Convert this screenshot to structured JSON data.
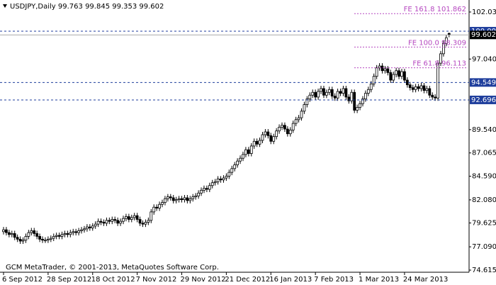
{
  "chart_data": {
    "type": "candlestick",
    "title": "USDJPY,Daily  99.763 99.845 99.353 99.602",
    "footer": "GCM MetaTrader, © 2001-2013, MetaQuotes Software Corp.",
    "categories": [
      "6 Sep 2012",
      null,
      null,
      null,
      null,
      null,
      null,
      null,
      null,
      null,
      null,
      null,
      null,
      null,
      null,
      null,
      "28 Sep 2012",
      null,
      null,
      null,
      null,
      null,
      null,
      null,
      null,
      null,
      null,
      null,
      null,
      null,
      null,
      null,
      "18 Oct 2012",
      null,
      null,
      null,
      null,
      null,
      null,
      null,
      null,
      null,
      null,
      null,
      null,
      null,
      null,
      null,
      "7 Nov 2012",
      null,
      null,
      null,
      null,
      null,
      null,
      null,
      null,
      null,
      null,
      null,
      null,
      null,
      null,
      null,
      "29 Nov 2012",
      null,
      null,
      null,
      null,
      null,
      null,
      null,
      null,
      null,
      null,
      null,
      null,
      null,
      null,
      null,
      "21 Dec 2012",
      null,
      null,
      null,
      null,
      null,
      null,
      null,
      null,
      null,
      null,
      null,
      null,
      null,
      null,
      null,
      "16 Jan 2013",
      null,
      null,
      null,
      null,
      null,
      null,
      null,
      null,
      null,
      null,
      null,
      null,
      null,
      null,
      null,
      "7 Feb 2013",
      null,
      null,
      null,
      null,
      null,
      null,
      null,
      null,
      null,
      null,
      null,
      null,
      null,
      null,
      null,
      "1 Mar 2013",
      null,
      null,
      null,
      null,
      null,
      null,
      null,
      null,
      null,
      null,
      null,
      null,
      null,
      null,
      null,
      "24 Mar 2013",
      null,
      null,
      null,
      null,
      null,
      null,
      null,
      null,
      null,
      null,
      null,
      null,
      null,
      null,
      null,
      null
    ],
    "open": [
      78.7,
      78.9,
      78.6,
      78.4,
      78.5,
      78.1,
      77.9,
      77.7,
      77.8,
      78.2,
      78.6,
      78.8,
      78.5,
      78.2,
      77.9,
      77.8,
      77.8,
      77.9,
      78.0,
      78.2,
      78.3,
      78.2,
      78.4,
      78.5,
      78.4,
      78.6,
      78.7,
      78.6,
      78.8,
      78.9,
      79.0,
      79.2,
      79.1,
      79.3,
      79.5,
      79.8,
      79.7,
      79.6,
      79.9,
      79.8,
      80.0,
      79.9,
      79.6,
      79.8,
      80.1,
      80.3,
      80.0,
      80.2,
      80.4,
      80.0,
      79.6,
      79.5,
      79.7,
      79.9,
      80.8,
      81.3,
      81.2,
      81.6,
      81.8,
      82.2,
      82.4,
      82.3,
      82.0,
      82.1,
      82.2,
      82.1,
      82.3,
      82.0,
      82.2,
      82.4,
      82.5,
      82.8,
      83.1,
      83.3,
      83.2,
      83.6,
      83.9,
      84.0,
      84.3,
      84.2,
      84.4,
      84.6,
      85.0,
      85.4,
      85.8,
      86.2,
      86.5,
      86.9,
      87.4,
      87.0,
      87.8,
      88.3,
      88.0,
      88.4,
      89.0,
      89.3,
      88.9,
      88.3,
      88.8,
      89.4,
      89.8,
      90.0,
      89.6,
      89.1,
      89.5,
      90.2,
      90.6,
      90.8,
      91.5,
      92.2,
      92.8,
      93.2,
      93.5,
      93.0,
      93.6,
      93.9,
      93.2,
      93.5,
      93.8,
      93.1,
      92.9,
      93.6,
      93.4,
      93.9,
      93.0,
      92.6,
      93.5,
      91.6,
      91.9,
      92.3,
      92.8,
      93.4,
      93.8,
      94.4,
      95.2,
      96.1,
      96.3,
      95.8,
      96.0,
      95.6,
      94.8,
      95.4,
      95.8,
      95.2,
      95.7,
      94.8,
      94.3,
      94.0,
      93.8,
      94.1,
      93.9,
      94.2,
      93.7,
      93.9,
      93.2,
      93.0,
      92.9,
      96.6,
      97.6,
      98.7,
      99.763
    ],
    "high": [
      79.2,
      79.2,
      78.9,
      78.8,
      78.8,
      78.4,
      78.2,
      78.1,
      78.5,
      78.9,
      79.1,
      79.1,
      78.8,
      78.5,
      78.2,
      78.1,
      78.2,
      78.3,
      78.5,
      78.6,
      78.6,
      78.7,
      78.8,
      78.8,
      78.9,
      79.0,
      79.0,
      79.1,
      79.2,
      79.3,
      79.5,
      79.5,
      79.6,
      79.8,
      80.1,
      80.1,
      80.0,
      80.2,
      80.2,
      80.3,
      80.3,
      80.2,
      80.1,
      80.4,
      80.6,
      80.6,
      80.5,
      80.7,
      80.7,
      80.3,
      79.9,
      80.0,
      80.2,
      81.1,
      81.6,
      81.6,
      81.9,
      82.1,
      82.5,
      82.7,
      82.7,
      82.6,
      82.4,
      82.5,
      82.5,
      82.6,
      82.6,
      82.5,
      82.7,
      82.8,
      83.1,
      83.4,
      83.6,
      83.6,
      83.9,
      84.2,
      84.3,
      84.6,
      84.6,
      84.7,
      84.9,
      85.3,
      85.7,
      86.1,
      86.5,
      86.8,
      87.2,
      87.7,
      87.7,
      88.1,
      88.6,
      88.6,
      88.7,
      89.3,
      89.6,
      89.6,
      89.2,
      89.1,
      89.7,
      90.1,
      90.3,
      90.3,
      89.9,
      89.8,
      90.5,
      90.9,
      91.1,
      91.8,
      92.5,
      93.1,
      93.5,
      93.8,
      93.8,
      93.9,
      94.2,
      94.2,
      93.8,
      94.1,
      94.1,
      93.4,
      93.9,
      93.9,
      94.2,
      94.2,
      93.3,
      93.8,
      93.8,
      92.2,
      92.6,
      93.1,
      93.7,
      94.1,
      94.7,
      95.5,
      96.4,
      96.6,
      96.6,
      96.3,
      96.3,
      95.9,
      95.7,
      96.1,
      96.1,
      96.0,
      96.0,
      95.1,
      94.6,
      94.3,
      94.4,
      94.4,
      94.5,
      94.5,
      94.2,
      94.2,
      93.5,
      93.3,
      96.9,
      97.9,
      99.0,
      99.6,
      99.845
    ],
    "low": [
      78.4,
      78.3,
      78.1,
      78.1,
      77.8,
      77.6,
      77.4,
      77.4,
      77.5,
      77.9,
      78.3,
      78.2,
      77.9,
      77.6,
      77.5,
      77.5,
      77.5,
      77.6,
      77.7,
      77.9,
      77.9,
      77.9,
      78.1,
      78.1,
      78.1,
      78.3,
      78.3,
      78.3,
      78.5,
      78.6,
      78.7,
      78.8,
      78.8,
      79.0,
      79.2,
      79.4,
      79.3,
      79.3,
      79.5,
      79.5,
      79.6,
      79.3,
      79.3,
      79.5,
      79.8,
      79.7,
      79.7,
      79.9,
      79.7,
      79.3,
      79.2,
      79.2,
      79.4,
      79.6,
      80.5,
      80.9,
      80.9,
      81.3,
      81.5,
      81.9,
      82.0,
      81.7,
      81.7,
      81.8,
      81.8,
      81.8,
      81.7,
      81.7,
      81.9,
      82.1,
      82.2,
      82.5,
      82.8,
      82.9,
      82.9,
      83.3,
      83.6,
      83.7,
      83.9,
      83.9,
      84.1,
      84.3,
      84.7,
      85.1,
      85.5,
      85.9,
      86.2,
      86.6,
      86.7,
      86.7,
      87.5,
      87.7,
      87.7,
      88.1,
      88.7,
      88.6,
      88.0,
      88.0,
      88.5,
      89.1,
      89.5,
      89.3,
      88.8,
      88.8,
      89.2,
      89.9,
      90.3,
      90.5,
      91.2,
      91.9,
      92.5,
      92.9,
      92.7,
      92.7,
      93.3,
      92.9,
      92.9,
      93.2,
      92.8,
      92.6,
      92.6,
      93.1,
      93.1,
      92.7,
      92.3,
      92.3,
      91.3,
      91.3,
      91.6,
      92.0,
      92.5,
      93.1,
      93.5,
      94.1,
      94.9,
      95.8,
      95.5,
      95.5,
      95.3,
      94.5,
      94.5,
      95.1,
      94.9,
      94.9,
      94.5,
      94.0,
      93.7,
      93.5,
      93.5,
      93.6,
      93.6,
      93.4,
      93.4,
      92.9,
      92.7,
      92.6,
      92.6,
      96.3,
      97.3,
      98.4,
      99.353
    ],
    "close": [
      78.9,
      78.6,
      78.4,
      78.5,
      78.1,
      77.9,
      77.7,
      77.8,
      78.2,
      78.6,
      78.8,
      78.5,
      78.2,
      77.9,
      77.8,
      77.8,
      77.9,
      78.0,
      78.2,
      78.3,
      78.2,
      78.4,
      78.5,
      78.4,
      78.6,
      78.7,
      78.6,
      78.8,
      78.9,
      79.0,
      79.2,
      79.1,
      79.3,
      79.5,
      79.8,
      79.7,
      79.6,
      79.9,
      79.8,
      80.0,
      79.9,
      79.6,
      79.8,
      80.1,
      80.3,
      80.0,
      80.2,
      80.4,
      80.0,
      79.6,
      79.5,
      79.7,
      79.9,
      80.8,
      81.3,
      81.2,
      81.6,
      81.8,
      82.2,
      82.4,
      82.3,
      82.0,
      82.1,
      82.2,
      82.1,
      82.3,
      82.0,
      82.2,
      82.4,
      82.5,
      82.8,
      83.1,
      83.3,
      83.2,
      83.6,
      83.9,
      84.0,
      84.3,
      84.2,
      84.4,
      84.6,
      85.0,
      85.4,
      85.8,
      86.2,
      86.5,
      86.9,
      87.4,
      87.0,
      87.8,
      88.3,
      88.0,
      88.4,
      89.0,
      89.3,
      88.9,
      88.3,
      88.8,
      89.4,
      89.8,
      90.0,
      89.6,
      89.1,
      89.5,
      90.2,
      90.6,
      90.8,
      91.5,
      92.2,
      92.8,
      93.2,
      93.5,
      93.0,
      93.6,
      93.9,
      93.2,
      93.5,
      93.8,
      93.1,
      92.9,
      93.6,
      93.4,
      93.9,
      93.0,
      92.6,
      93.5,
      91.6,
      91.9,
      92.3,
      92.8,
      93.4,
      93.8,
      94.4,
      95.2,
      96.1,
      96.3,
      95.8,
      96.0,
      95.6,
      94.8,
      95.4,
      95.8,
      95.2,
      95.7,
      94.8,
      94.3,
      94.0,
      93.8,
      94.1,
      93.9,
      94.2,
      93.7,
      93.9,
      93.2,
      93.0,
      92.9,
      96.6,
      97.6,
      98.7,
      99.3,
      99.602
    ],
    "ylim": [
      74.39,
      103.01
    ],
    "yticks": [
      102.035,
      {
        "value": 97.04,
        "label": "97.040"
      },
      {
        "value": 89.54,
        "label": "89.540"
      },
      87.065,
      {
        "value": 84.59,
        "label": "84.590"
      },
      {
        "value": 82.08,
        "label": "82.080"
      },
      79.625,
      {
        "value": 77.09,
        "label": "77.090"
      },
      74.615
    ],
    "levels": [
      {
        "value": 100,
        "label": "100.000"
      },
      {
        "value": 94.549,
        "label": "94.549"
      },
      {
        "value": 92.696,
        "label": "92.696"
      }
    ],
    "level_color": "#1f3e9c",
    "fibo_levels": [
      {
        "value": 101.862,
        "label": "FE 161.8 101.862"
      },
      {
        "value": 98.309,
        "label": "FE 100.0 98.309"
      },
      {
        "value": 96.113,
        "label": "FE 61.8 96.113"
      }
    ],
    "fibo_color": "#b648c0"
  }
}
